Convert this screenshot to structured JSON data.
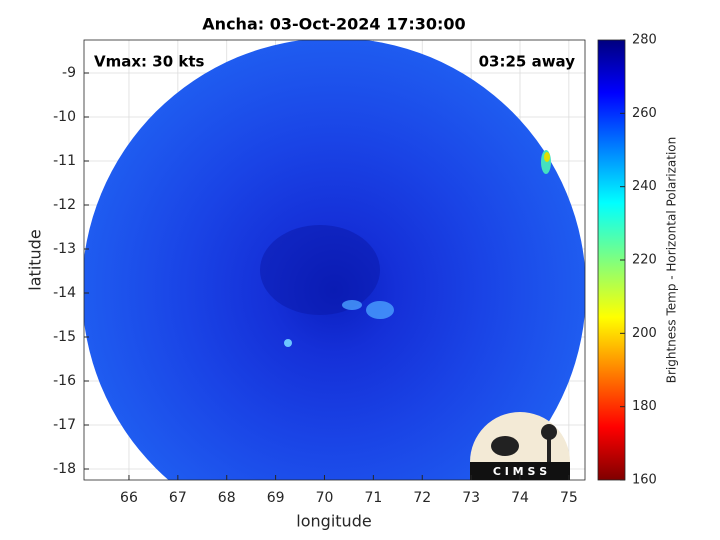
{
  "map": {
    "title": "Ancha: 03-Oct-2024 17:30:00",
    "annotations": {
      "vmax": "Vmax: 30 kts",
      "eta": "03:25 away"
    },
    "x_label": "longitude",
    "y_label": "latitude",
    "xlim": [
      65.08,
      75.33
    ],
    "ylim": [
      -18.25,
      -8.25
    ],
    "xticks": [
      66,
      67,
      68,
      69,
      70,
      71,
      72,
      73,
      74,
      75
    ],
    "yticks": [
      -18,
      -17,
      -16,
      -15,
      -14,
      -13,
      -12,
      -11,
      -10,
      -9
    ],
    "grid": true,
    "colorbar": {
      "label": "Brightness Temp - Horizontal Polarization",
      "lim": [
        160,
        280
      ],
      "ticks": [
        160,
        180,
        200,
        220,
        240,
        260,
        280
      ]
    },
    "logo": {
      "text": "C I M S S"
    }
  }
}
